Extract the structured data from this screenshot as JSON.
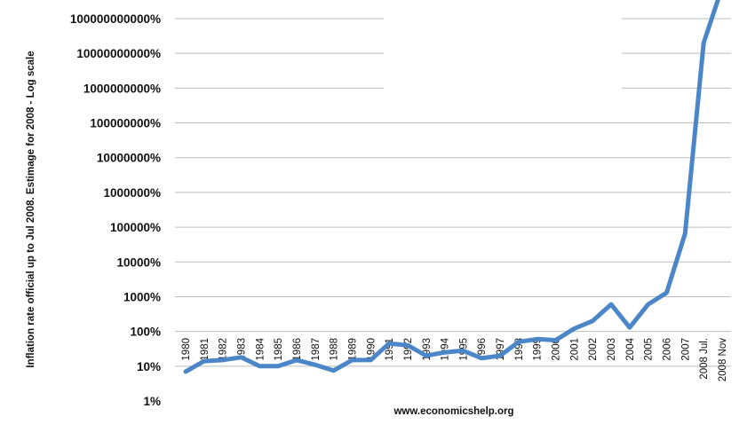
{
  "chart_data": {
    "type": "line",
    "title": "",
    "xlabel": "www.economicshelp.org",
    "ylabel": "Inflation rate official up to Jul 2008. Estimage for 2008 - Log scale",
    "y_scale": "log",
    "ylim": [
      1,
      1000000000000
    ],
    "grid": true,
    "legend": "none",
    "y_ticks": [
      {
        "value": 1,
        "label": "1%"
      },
      {
        "value": 10,
        "label": "10%"
      },
      {
        "value": 100,
        "label": "100%"
      },
      {
        "value": 1000,
        "label": "1000%"
      },
      {
        "value": 10000,
        "label": "10000%"
      },
      {
        "value": 100000,
        "label": "100000%"
      },
      {
        "value": 1000000,
        "label": "1000000%"
      },
      {
        "value": 10000000,
        "label": "10000000%"
      },
      {
        "value": 100000000,
        "label": "100000000%"
      },
      {
        "value": 1000000000,
        "label": "1000000000%"
      },
      {
        "value": 10000000000,
        "label": "10000000000%"
      },
      {
        "value": 100000000000,
        "label": "100000000000%"
      }
    ],
    "categories": [
      "1980",
      "1981",
      "1982",
      "1983",
      "1984",
      "1985",
      "1986",
      "1987",
      "1988",
      "1989",
      "1990",
      "1991",
      "1992",
      "1993",
      "1994",
      "1995",
      "1996",
      "1997",
      "1998",
      "1999",
      "2000",
      "2001",
      "2002",
      "2003",
      "2004",
      "2005",
      "2006",
      "2007",
      "2008 Jul.",
      "2008 Nov"
    ],
    "series": [
      {
        "values": [
          7,
          14,
          15,
          18,
          10,
          10,
          15,
          11,
          7.5,
          15,
          15,
          45,
          40,
          20,
          25,
          28,
          17,
          20,
          50,
          60,
          56,
          120,
          200,
          600,
          130,
          600,
          1300,
          66000,
          20000000000,
          800000000000
        ],
        "color": "#4a86c8"
      }
    ]
  }
}
